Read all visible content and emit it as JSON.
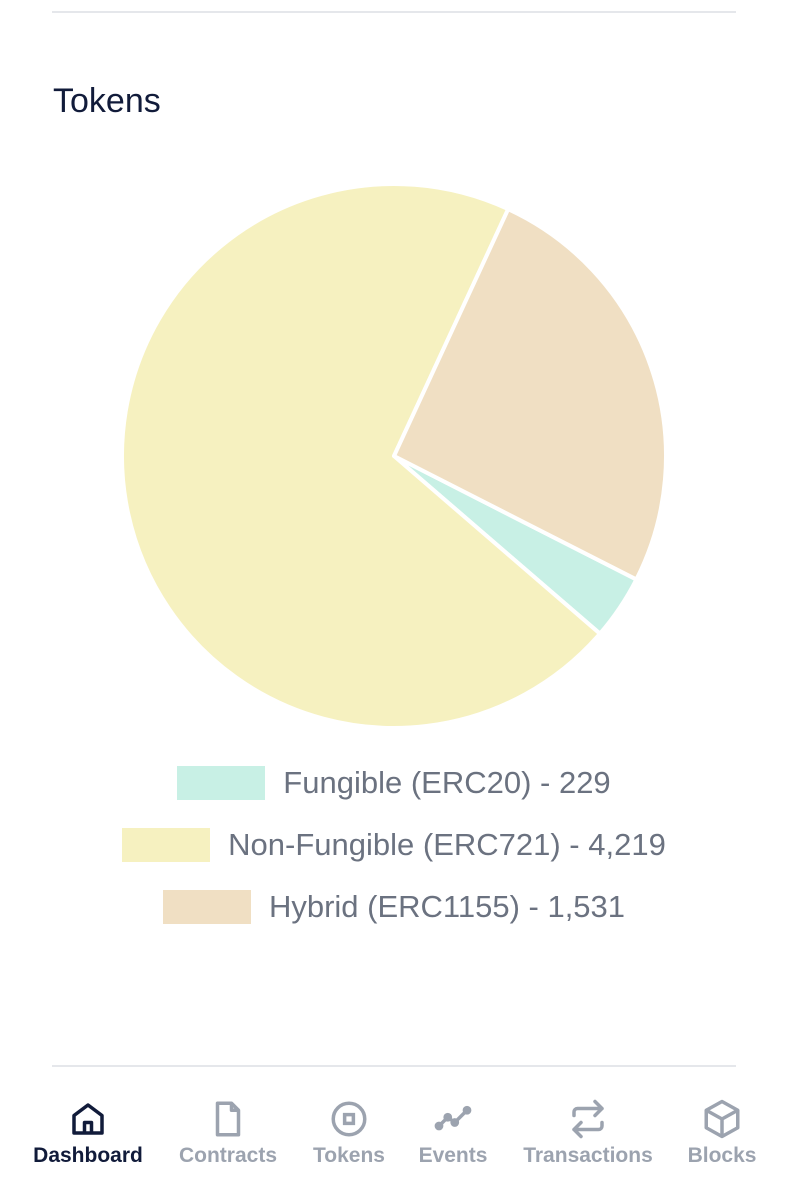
{
  "header": {
    "title": "Tokens"
  },
  "chart_data": {
    "type": "pie",
    "categories": [
      "Fungible (ERC20) - 229",
      "Non-Fungible (ERC721) - 4,219",
      "Hybrid (ERC1155) - 1,531"
    ],
    "values": [
      229,
      4219,
      1531
    ],
    "colors": [
      "#c8f0e5",
      "#f6f1c0",
      "#f0dfc3"
    ]
  },
  "nav": {
    "items": [
      "Dashboard",
      "Contracts",
      "Tokens",
      "Events",
      "Transactions",
      "Blocks"
    ],
    "active": 0
  }
}
